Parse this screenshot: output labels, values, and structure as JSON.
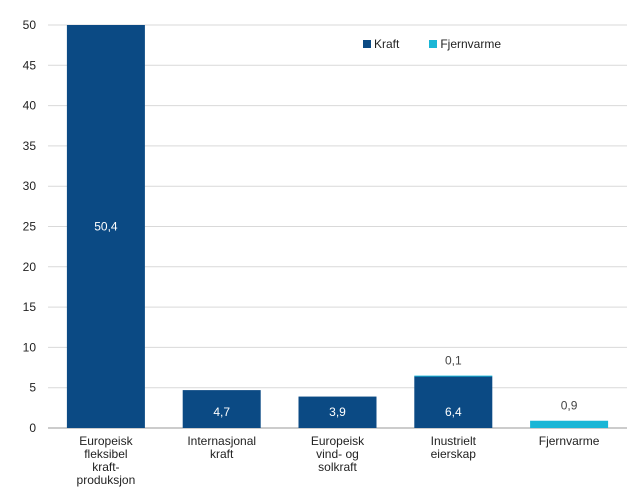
{
  "chart_data": {
    "type": "bar",
    "stacked": true,
    "categories": [
      [
        "Europeisk",
        "fleksibel",
        "kraft-",
        "produksjon"
      ],
      [
        "Internasjonal",
        "kraft"
      ],
      [
        "Europeisk",
        "vind- og",
        "solkraft"
      ],
      [
        "Inustrielt",
        "eierskap"
      ],
      [
        "Fjernvarme"
      ]
    ],
    "series": [
      {
        "name": "Kraft",
        "color": "#0b4a84",
        "values": [
          50.4,
          4.7,
          3.9,
          6.4,
          0
        ],
        "labels": [
          "50,4",
          "4,7",
          "3,9",
          "6,4",
          ""
        ]
      },
      {
        "name": "Fjernvarme",
        "color": "#1ab6d6",
        "values": [
          0,
          0,
          0,
          0.1,
          0.9
        ],
        "labels": [
          "",
          "",
          "",
          "0,1",
          "0,9"
        ]
      }
    ],
    "ylim": [
      0,
      50
    ],
    "yticks": [
      0,
      5,
      10,
      15,
      20,
      25,
      30,
      35,
      40,
      45,
      50
    ],
    "grid": true,
    "legend_position": "top-right"
  }
}
